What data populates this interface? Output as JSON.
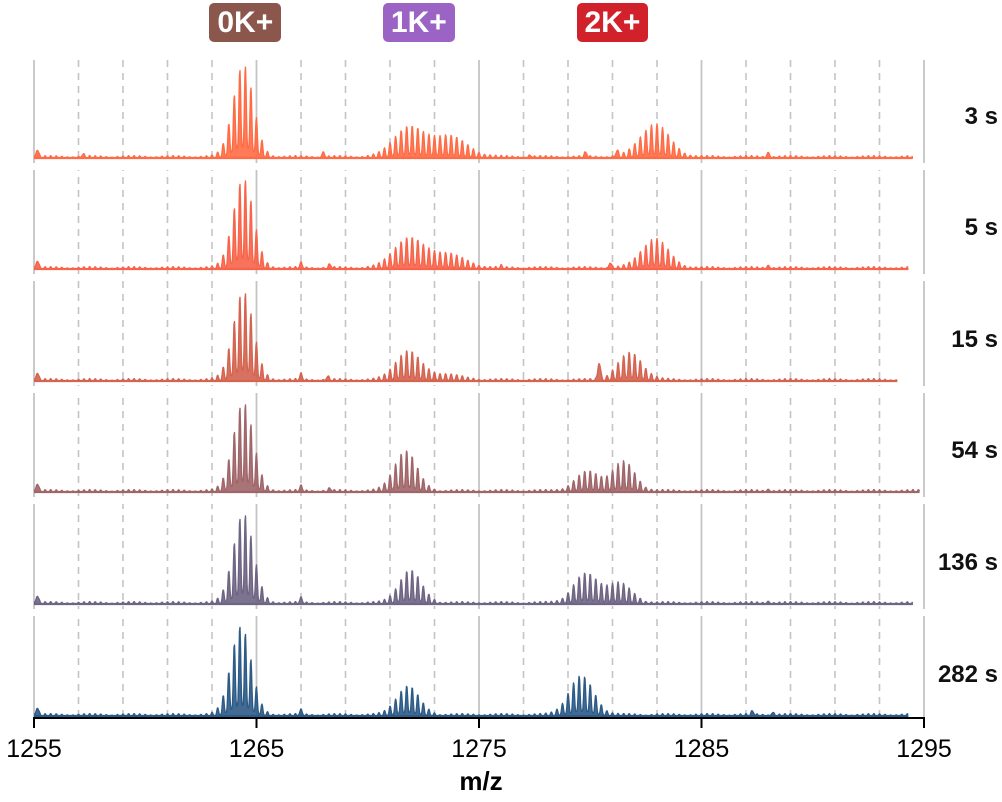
{
  "chart_data": {
    "type": "line",
    "title": "",
    "xlabel": "m/z",
    "ylabel": "",
    "xlim": [
      1255,
      1295
    ],
    "x_ticks": [
      "1255",
      "1265",
      "1275",
      "1285",
      "1295"
    ],
    "major_gridlines": [
      1255,
      1265,
      1275,
      1285,
      1295
    ],
    "minor_gridlines": [
      1257,
      1259,
      1261,
      1263,
      1267,
      1269,
      1271,
      1273,
      1277,
      1279,
      1281,
      1283,
      1287,
      1289,
      1291,
      1293
    ],
    "grid": true,
    "peak_annotations": [
      {
        "label": "0K+",
        "mz": 1264.5,
        "color": "#8B574C"
      },
      {
        "label": "1K+",
        "mz": 1272.3,
        "color": "#9B63C4"
      },
      {
        "label": "2K+",
        "mz": 1281.0,
        "color": "#D1222B"
      }
    ],
    "series": [
      {
        "name": "3 s",
        "color": "#FF6B45",
        "end_mz": 1294.5,
        "noise": 0.025,
        "envelopes": [
          {
            "center": 1264.4,
            "width": 0.45,
            "height": 0.96
          },
          {
            "center": 1271.8,
            "width": 0.65,
            "height": 0.3
          },
          {
            "center": 1273.6,
            "width": 0.8,
            "height": 0.22
          },
          {
            "center": 1282.9,
            "width": 0.65,
            "height": 0.34
          }
        ],
        "spikes": [
          {
            "mz": 1257.2,
            "height": 0.03
          },
          {
            "mz": 1268.0,
            "height": 0.05
          },
          {
            "mz": 1277.3,
            "height": 0.02
          },
          {
            "mz": 1279.8,
            "height": 0.05
          },
          {
            "mz": 1281.2,
            "height": 0.06
          },
          {
            "mz": 1288.0,
            "height": 0.05
          }
        ]
      },
      {
        "name": "5 s",
        "color": "#F7644A",
        "end_mz": 1294.3,
        "noise": 0.025,
        "envelopes": [
          {
            "center": 1264.4,
            "width": 0.45,
            "height": 0.93
          },
          {
            "center": 1271.8,
            "width": 0.65,
            "height": 0.3
          },
          {
            "center": 1273.5,
            "width": 0.8,
            "height": 0.15
          },
          {
            "center": 1282.9,
            "width": 0.6,
            "height": 0.3
          }
        ],
        "spikes": [
          {
            "mz": 1267.0,
            "height": 0.05
          },
          {
            "mz": 1268.3,
            "height": 0.04
          },
          {
            "mz": 1276.0,
            "height": 0.02
          },
          {
            "mz": 1280.9,
            "height": 0.06
          },
          {
            "mz": 1288.0,
            "height": 0.03
          }
        ]
      },
      {
        "name": "15 s",
        "color": "#D4634F",
        "end_mz": 1293.8,
        "noise": 0.025,
        "envelopes": [
          {
            "center": 1264.4,
            "width": 0.45,
            "height": 0.92
          },
          {
            "center": 1271.8,
            "width": 0.55,
            "height": 0.3
          },
          {
            "center": 1273.4,
            "width": 0.7,
            "height": 0.06
          },
          {
            "center": 1281.8,
            "width": 0.55,
            "height": 0.28
          }
        ],
        "spikes": [
          {
            "mz": 1267.0,
            "height": 0.06
          },
          {
            "mz": 1268.2,
            "height": 0.04
          },
          {
            "mz": 1280.4,
            "height": 0.18
          }
        ]
      },
      {
        "name": "54 s",
        "color": "#A06569",
        "end_mz": 1294.8,
        "noise": 0.025,
        "envelopes": [
          {
            "center": 1264.4,
            "width": 0.45,
            "height": 0.92
          },
          {
            "center": 1271.7,
            "width": 0.5,
            "height": 0.42
          },
          {
            "center": 1279.9,
            "width": 0.55,
            "height": 0.2
          },
          {
            "center": 1281.5,
            "width": 0.5,
            "height": 0.3
          }
        ],
        "spikes": [
          {
            "mz": 1267.0,
            "height": 0.05
          },
          {
            "mz": 1268.3,
            "height": 0.03
          },
          {
            "mz": 1288.0,
            "height": 0.02
          }
        ]
      },
      {
        "name": "136 s",
        "color": "#6E6483",
        "end_mz": 1294.5,
        "noise": 0.025,
        "envelopes": [
          {
            "center": 1264.4,
            "width": 0.45,
            "height": 0.93
          },
          {
            "center": 1271.9,
            "width": 0.5,
            "height": 0.34
          },
          {
            "center": 1279.8,
            "width": 0.55,
            "height": 0.3
          },
          {
            "center": 1281.3,
            "width": 0.55,
            "height": 0.2
          }
        ],
        "spikes": [
          {
            "mz": 1267.0,
            "height": 0.05
          },
          {
            "mz": 1288.0,
            "height": 0.02
          }
        ]
      },
      {
        "name": "282 s",
        "color": "#2D5B87",
        "end_mz": 1294.3,
        "noise": 0.025,
        "envelopes": [
          {
            "center": 1264.3,
            "width": 0.45,
            "height": 0.93
          },
          {
            "center": 1271.8,
            "width": 0.5,
            "height": 0.3
          },
          {
            "center": 1279.6,
            "width": 0.55,
            "height": 0.4
          }
        ],
        "spikes": [
          {
            "mz": 1267.0,
            "height": 0.05
          },
          {
            "mz": 1287.3,
            "height": 0.04
          },
          {
            "mz": 1288.2,
            "height": 0.03
          }
        ]
      }
    ]
  }
}
